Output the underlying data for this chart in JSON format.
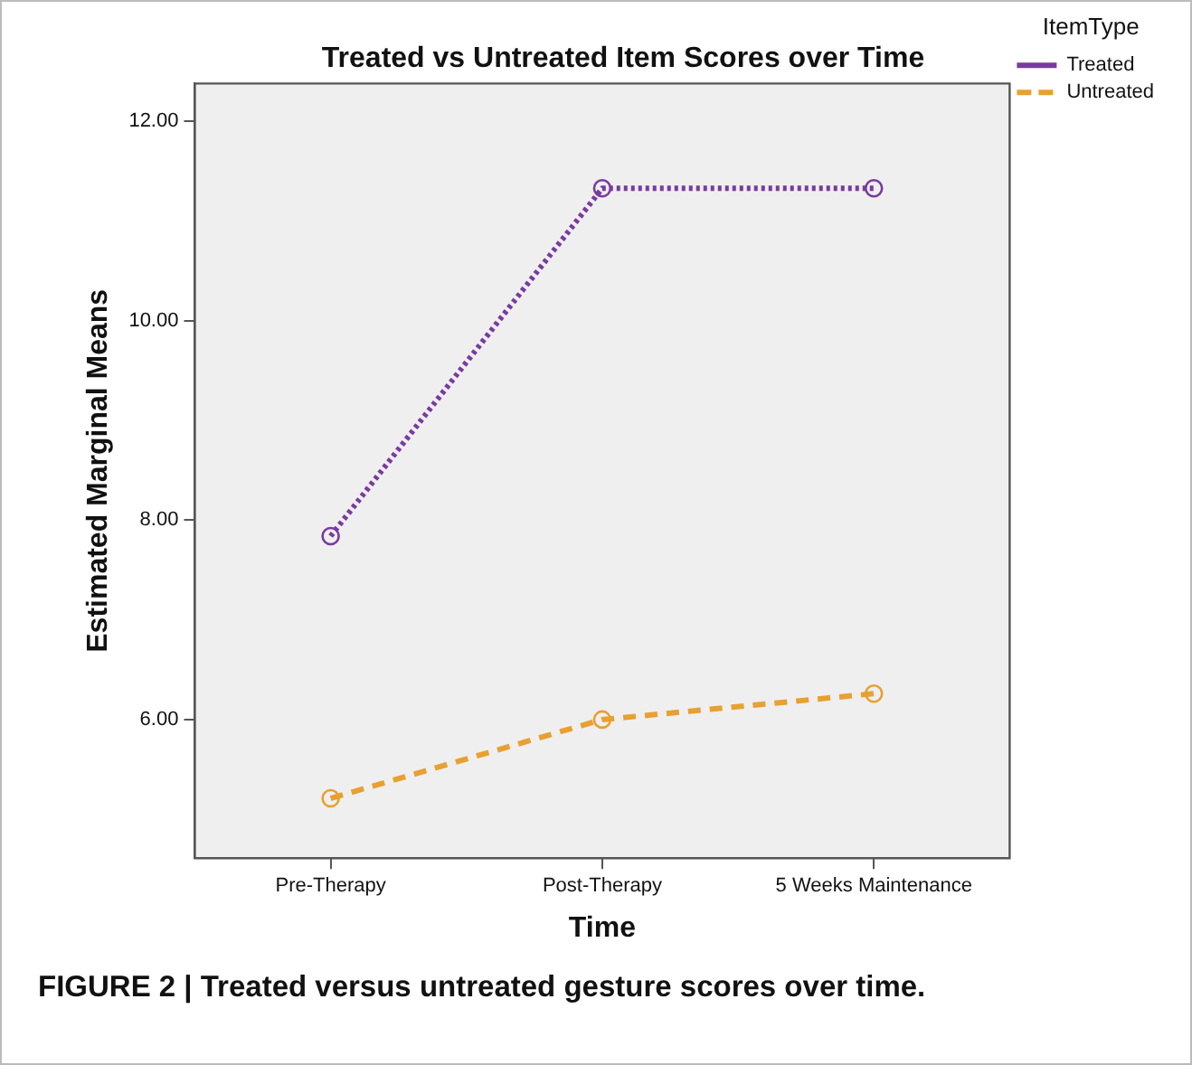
{
  "chart_data": {
    "type": "line",
    "title": "Treated vs Untreated Item Scores over Time",
    "xlabel": "Time",
    "ylabel": "Estimated Marginal Means",
    "legend_title": "ItemType",
    "categories": [
      "Pre-Therapy",
      "Post-Therapy",
      "5 Weeks Maintenance"
    ],
    "series": [
      {
        "name": "Treated",
        "color": "#7a3aa0",
        "values": [
          7.84,
          11.33,
          11.33
        ],
        "line_style": "dotted"
      },
      {
        "name": "Untreated",
        "color": "#e8a030",
        "values": [
          5.21,
          6.0,
          6.26
        ],
        "line_style": "dashed"
      }
    ],
    "ylim": [
      4.61,
      12.38
    ],
    "yticks": [
      {
        "value": 6,
        "label": "6.00"
      },
      {
        "value": 8,
        "label": "8.00"
      },
      {
        "value": 10,
        "label": "10.00"
      },
      {
        "value": 12,
        "label": "12.00"
      }
    ],
    "grid": false,
    "legend": "top right",
    "marker": "circle",
    "annotations": [
      "FIGURE 2 | Treated versus untreated gesture scores over time."
    ]
  }
}
